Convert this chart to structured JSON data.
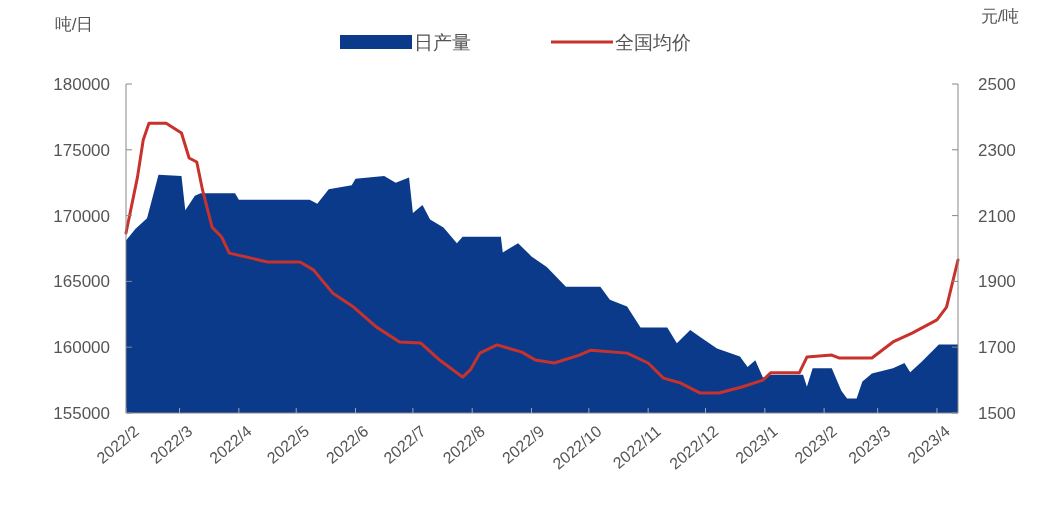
{
  "chart_data": {
    "type": "area",
    "ylabel": "吨/日",
    "y2label": "元/吨",
    "legend": "top",
    "xlim": [
      "2022-02-01",
      "2023-04-12"
    ],
    "xticks": [
      {
        "value": "2022-02-01",
        "label": "2022/2"
      },
      {
        "value": "2022-03-01",
        "label": "2022/3"
      },
      {
        "value": "2022-04-01",
        "label": "2022/4"
      },
      {
        "value": "2022-05-01",
        "label": "2022/5"
      },
      {
        "value": "2022-06-01",
        "label": "2022/6"
      },
      {
        "value": "2022-07-01",
        "label": "2022/7"
      },
      {
        "value": "2022-08-01",
        "label": "2022/8"
      },
      {
        "value": "2022-09-01",
        "label": "2022/9"
      },
      {
        "value": "2022-10-01",
        "label": "2022/10"
      },
      {
        "value": "2022-11-01",
        "label": "2022/11"
      },
      {
        "value": "2022-12-01",
        "label": "2022/12"
      },
      {
        "value": "2023-01-01",
        "label": "2023/1"
      },
      {
        "value": "2023-02-01",
        "label": "2023/2"
      },
      {
        "value": "2023-03-01",
        "label": "2023/3"
      },
      {
        "value": "2023-04-01",
        "label": "2023/4"
      }
    ],
    "ylim": [
      155000,
      180000
    ],
    "yticks": [
      155000,
      160000,
      165000,
      170000,
      175000,
      180000
    ],
    "y2lim": [
      1500,
      2500
    ],
    "y2ticks": [
      1500,
      1700,
      1900,
      2100,
      2300,
      2500
    ],
    "series": [
      {
        "name": "日产量",
        "color": "#0b3a8a",
        "x": [
          "2022-02-01",
          "2022-02-06",
          "2022-02-12",
          "2022-02-18",
          "2022-03-02",
          "2022-03-04",
          "2022-03-09",
          "2022-03-12",
          "2022-03-30",
          "2022-04-01",
          "2022-05-08",
          "2022-05-12",
          "2022-05-18",
          "2022-05-30",
          "2022-06-01",
          "2022-06-16",
          "2022-06-22",
          "2022-06-29",
          "2022-07-01",
          "2022-07-06",
          "2022-07-10",
          "2022-07-17",
          "2022-07-24",
          "2022-07-27",
          "2022-08-16",
          "2022-08-17",
          "2022-08-25",
          "2022-09-01",
          "2022-09-09",
          "2022-09-19",
          "2022-10-07",
          "2022-10-12",
          "2022-10-21",
          "2022-10-28",
          "2022-11-11",
          "2022-11-16",
          "2022-11-23",
          "2022-11-28",
          "2022-12-07",
          "2022-12-19",
          "2022-12-23",
          "2022-12-27",
          "2022-12-31",
          "2023-01-04",
          "2023-01-21",
          "2023-01-23",
          "2023-01-26",
          "2023-02-05",
          "2023-02-10",
          "2023-02-13",
          "2023-02-18",
          "2023-02-21",
          "2023-02-26",
          "2023-03-09",
          "2023-03-15",
          "2023-03-18",
          "2023-03-24",
          "2023-04-02",
          "2023-04-12"
        ],
        "values": [
          168100,
          169000,
          169800,
          173100,
          173000,
          170400,
          171500,
          171700,
          171700,
          171200,
          171200,
          170900,
          172000,
          172300,
          172800,
          173000,
          172500,
          172900,
          170200,
          170800,
          169700,
          169100,
          167900,
          168400,
          168400,
          167200,
          167900,
          166900,
          166100,
          164600,
          164600,
          163600,
          163100,
          161500,
          161500,
          160300,
          161300,
          160800,
          159900,
          159300,
          158500,
          159000,
          157700,
          157900,
          157900,
          157000,
          158400,
          158400,
          156700,
          156100,
          156100,
          157400,
          158000,
          158400,
          158800,
          158100,
          158900,
          160200,
          160200
        ]
      },
      {
        "name": "全国均价",
        "type": "line",
        "axis": "y2",
        "color": "#c8322d",
        "x": [
          "2022-02-01",
          "2022-02-07",
          "2022-02-10",
          "2022-02-13",
          "2022-02-22",
          "2022-03-02",
          "2022-03-06",
          "2022-03-10",
          "2022-03-13",
          "2022-03-18",
          "2022-03-23",
          "2022-03-27",
          "2022-04-16",
          "2022-05-03",
          "2022-05-10",
          "2022-05-20",
          "2022-05-31",
          "2022-06-12",
          "2022-06-24",
          "2022-07-05",
          "2022-07-15",
          "2022-07-27",
          "2022-07-31",
          "2022-08-05",
          "2022-08-14",
          "2022-08-27",
          "2022-09-03",
          "2022-09-13",
          "2022-09-26",
          "2022-10-02",
          "2022-10-21",
          "2022-11-01",
          "2022-11-09",
          "2022-11-18",
          "2022-11-28",
          "2022-12-08",
          "2022-12-20",
          "2022-12-31",
          "2023-01-04",
          "2023-01-19",
          "2023-01-23",
          "2023-02-05",
          "2023-02-09",
          "2023-02-26",
          "2023-03-09",
          "2023-03-19",
          "2023-04-01",
          "2023-04-06",
          "2023-04-12"
        ],
        "values": [
          2047,
          2217,
          2330,
          2381,
          2381,
          2351,
          2275,
          2263,
          2178,
          2065,
          2035,
          1986,
          1959,
          1959,
          1935,
          1865,
          1822,
          1761,
          1716,
          1713,
          1661,
          1609,
          1631,
          1682,
          1707,
          1685,
          1661,
          1652,
          1676,
          1691,
          1682,
          1652,
          1606,
          1591,
          1561,
          1561,
          1579,
          1600,
          1622,
          1622,
          1670,
          1676,
          1667,
          1667,
          1716,
          1743,
          1783,
          1822,
          1965
        ]
      }
    ]
  }
}
